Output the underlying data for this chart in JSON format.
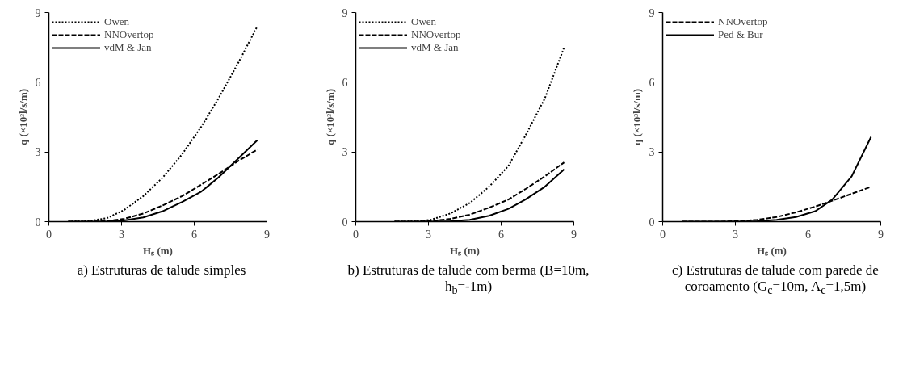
{
  "chart_data": [
    {
      "type": "line",
      "xlabel": "Hₛ (m)",
      "ylabel": "q (×10³l/s/m)",
      "annotations": [
        "a) Estruturas de talude simples"
      ],
      "xlim": [
        0,
        9
      ],
      "ylim": [
        0,
        9
      ],
      "xticks": [
        0,
        3,
        6,
        9
      ],
      "yticks": [
        0,
        3,
        6,
        9
      ],
      "grid": false,
      "legend": "top left",
      "marker": "none",
      "x": [
        0.8,
        1.6,
        2.4,
        3.1,
        3.9,
        4.7,
        5.5,
        6.3,
        7.0,
        7.8,
        8.6
      ],
      "series": [
        {
          "name": "Owen",
          "color": "#000000",
          "line_style": "dotted",
          "values": [
            0,
            0.02,
            0.15,
            0.5,
            1.1,
            1.9,
            2.9,
            4.1,
            5.3,
            6.8,
            8.4
          ]
        },
        {
          "name": "NNOvertop",
          "color": "#000000",
          "line_style": "dashed",
          "values": [
            0,
            0,
            0.03,
            0.12,
            0.35,
            0.7,
            1.1,
            1.6,
            2.05,
            2.6,
            3.1
          ]
        },
        {
          "name": "vdM & Jan",
          "color": "#000000",
          "line_style": "solid",
          "values": [
            0,
            0,
            0.01,
            0.05,
            0.18,
            0.45,
            0.85,
            1.3,
            1.9,
            2.7,
            3.5
          ]
        }
      ]
    },
    {
      "type": "line",
      "xlabel": "Hₛ (m)",
      "ylabel": "q (×10³l/s/m)",
      "annotations": [
        "b) Estruturas de talude com berma (B=10m, h$_{b}$=-1m)"
      ],
      "xlim": [
        0,
        9
      ],
      "ylim": [
        0,
        9
      ],
      "xticks": [
        0,
        3,
        6,
        9
      ],
      "yticks": [
        0,
        3,
        6,
        9
      ],
      "grid": false,
      "legend": "top left",
      "marker": "none",
      "x": [
        1.6,
        2.4,
        3.1,
        3.9,
        4.7,
        5.5,
        6.3,
        7.0,
        7.8,
        8.6
      ],
      "series": [
        {
          "name": "Owen",
          "color": "#000000",
          "line_style": "dotted",
          "values": [
            0,
            0.01,
            0.08,
            0.35,
            0.8,
            1.5,
            2.4,
            3.7,
            5.3,
            7.5
          ]
        },
        {
          "name": "NNOvertop",
          "color": "#000000",
          "line_style": "dashed",
          "values": [
            0,
            0,
            0.02,
            0.12,
            0.3,
            0.6,
            0.95,
            1.4,
            1.95,
            2.55
          ]
        },
        {
          "name": "vdM & Jan",
          "color": "#000000",
          "line_style": "solid",
          "values": [
            0,
            0,
            0,
            0.02,
            0.08,
            0.25,
            0.55,
            0.95,
            1.5,
            2.25
          ]
        }
      ]
    },
    {
      "type": "line",
      "xlabel": "Hₛ (m)",
      "ylabel": "q (×10³l/s/m)",
      "annotations": [
        "c) Estruturas de talude com parede de coroamento (G$_{c}$=10m, A$_{c}$=1,5m)"
      ],
      "xlim": [
        0,
        9
      ],
      "ylim": [
        0,
        9
      ],
      "xticks": [
        0,
        3,
        6,
        9
      ],
      "yticks": [
        0,
        3,
        6,
        9
      ],
      "grid": false,
      "legend": "top left",
      "marker": "none",
      "x": [
        0.8,
        1.6,
        2.4,
        3.1,
        3.9,
        4.7,
        5.5,
        6.3,
        7.0,
        7.8,
        8.6
      ],
      "series": [
        {
          "name": "NNOvertop",
          "color": "#000000",
          "line_style": "dashed",
          "values": [
            0,
            0,
            0,
            0.02,
            0.08,
            0.2,
            0.4,
            0.65,
            0.9,
            1.2,
            1.5
          ]
        },
        {
          "name": "Ped & Bur",
          "color": "#000000",
          "line_style": "solid",
          "values": [
            0,
            0,
            0,
            0,
            0.02,
            0.08,
            0.2,
            0.45,
            0.95,
            1.95,
            3.65
          ]
        }
      ]
    }
  ]
}
